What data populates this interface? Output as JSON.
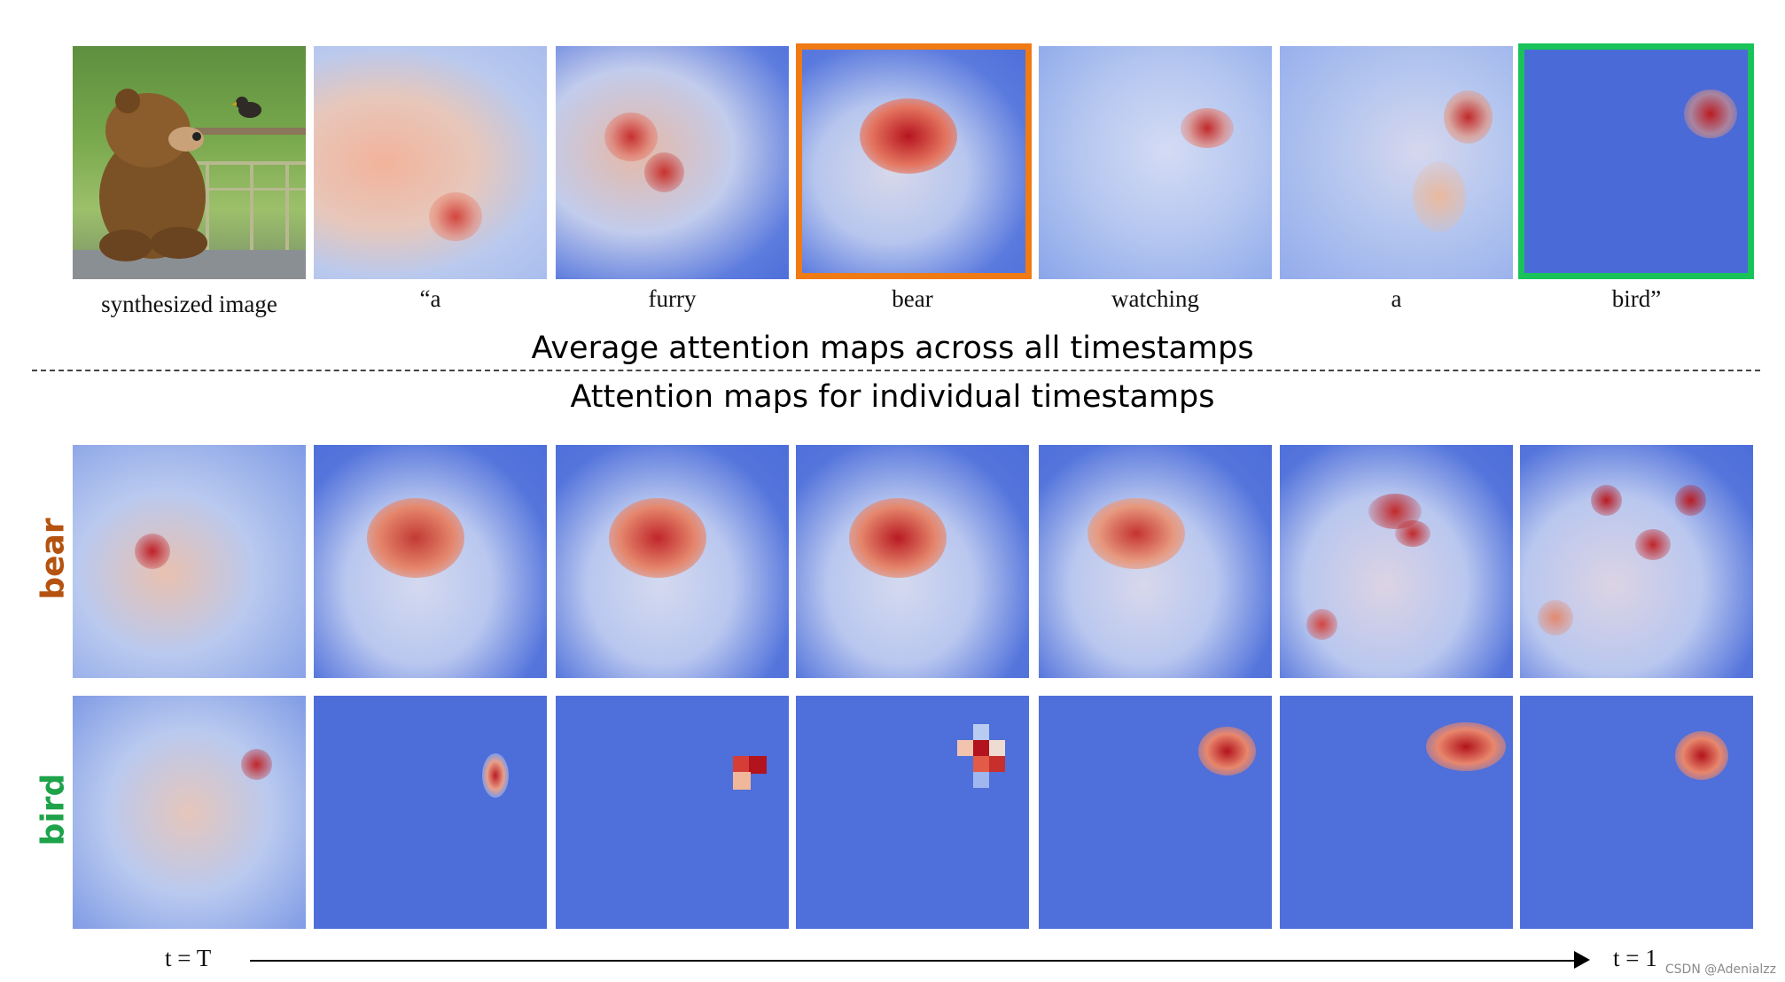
{
  "top_row": {
    "labels": [
      "synthesized image",
      "“a",
      "furry",
      "bear",
      "watching",
      "a",
      "bird”"
    ],
    "highlight_colors": {
      "bear": "#f07a14",
      "bird": "#19c35a"
    }
  },
  "headings": {
    "average": "Average attention maps across all timestamps",
    "individual": "Attention maps for individual  timestamps"
  },
  "rows": {
    "bear": {
      "label": "bear",
      "color": "#b5520f"
    },
    "bird": {
      "label": "bird",
      "color": "#1ea34a"
    }
  },
  "time_axis": {
    "start": "t = T",
    "end": "t = 1"
  },
  "watermark": "CSDN @Adenialzz"
}
